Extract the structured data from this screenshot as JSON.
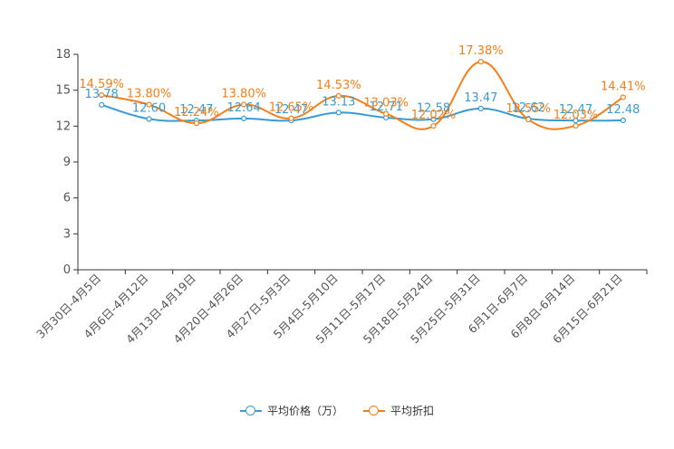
{
  "colors": {
    "series1": "#3a9bd2",
    "series2": "#f57f17",
    "axis": "#333333",
    "tick_text": "#555555"
  },
  "chart_data": {
    "type": "line",
    "categories": [
      "3月30日-4月5日",
      "4月6日-4月12日",
      "4月13日-4月19日",
      "4月20日-4月26日",
      "4月27日-5月3日",
      "5月4日-5月10日",
      "5月11日-5月17日",
      "5月18日-5月24日",
      "5月25日-5月31日",
      "6月1日-6月7日",
      "6月8日-6月14日",
      "6月15日-6月21日"
    ],
    "series": [
      {
        "name": "平均价格（万）",
        "values": [
          13.78,
          12.6,
          12.47,
          12.64,
          12.47,
          13.13,
          12.71,
          12.58,
          13.47,
          12.62,
          12.47,
          12.48
        ],
        "labels": [
          "13.78",
          "12.60",
          "12.47",
          "12.64",
          "12.47",
          "13.13",
          "12.71",
          "12.58",
          "13.47",
          "12.62",
          "12.47",
          "12.48"
        ]
      },
      {
        "name": "平均折扣",
        "values": [
          14.59,
          13.8,
          12.24,
          13.8,
          12.65,
          14.53,
          13.03,
          12.02,
          17.38,
          12.55,
          12.03,
          14.41
        ],
        "labels": [
          "14.59%",
          "13.80%",
          "12.24%",
          "13.80%",
          "12.65%",
          "14.53%",
          "13.03%",
          "12.02%",
          "17.38%",
          "12.55%",
          "12.03%",
          "14.41%"
        ]
      }
    ],
    "y_ticks": [
      "0",
      "3",
      "6",
      "9",
      "12",
      "15",
      "18"
    ],
    "ylim": [
      0,
      18
    ],
    "grid": false,
    "legend_position": "bottom"
  }
}
